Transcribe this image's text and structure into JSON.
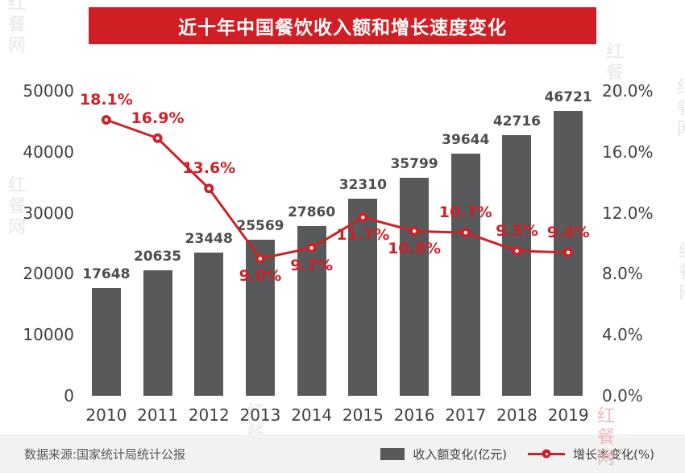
{
  "title": "近十年中国餐饮收入额和增长速度变化",
  "watermark": "红餐网",
  "footer": {
    "source": "数据来源:国家统计局统计公报",
    "legend": [
      {
        "label": "收入额变化(亿元)",
        "type": "bar",
        "color": "#58595b"
      },
      {
        "label": "增长率变化(%)",
        "type": "line",
        "color": "#cc2229"
      }
    ]
  },
  "colors": {
    "banner": "#cf1f25",
    "bar": "#58595b",
    "line": "#cc2229",
    "axis_text": "#414042",
    "footer_bg": "#f2f2f2"
  },
  "chart_data": {
    "type": "bar+line",
    "title": "近十年中国餐饮收入额和增长速度变化",
    "categories": [
      "2010",
      "2011",
      "2012",
      "2013",
      "2014",
      "2015",
      "2016",
      "2017",
      "2018",
      "2019"
    ],
    "series": [
      {
        "name": "收入额变化(亿元)",
        "type": "bar",
        "axis": "left",
        "color": "#58595b",
        "values": [
          17648,
          20635,
          23448,
          25569,
          27860,
          32310,
          35799,
          39644,
          42716,
          46721
        ]
      },
      {
        "name": "增长率变化(%)",
        "type": "line",
        "axis": "right",
        "color": "#cc2229",
        "values": [
          18.1,
          16.9,
          13.6,
          9.0,
          9.7,
          11.7,
          10.8,
          10.7,
          9.5,
          9.4
        ],
        "label_suffix": "%",
        "label_positions": [
          "above",
          "above",
          "above",
          "below",
          "below",
          "below",
          "below",
          "above",
          "above",
          "above"
        ]
      }
    ],
    "left_axis": {
      "min": 0,
      "max": 50000,
      "step": 10000,
      "ticks": [
        "0",
        "10000",
        "20000",
        "30000",
        "40000",
        "50000"
      ]
    },
    "right_axis": {
      "min": 0,
      "max": 20,
      "step": 4,
      "ticks": [
        "0.0%",
        "4.0%",
        "8.0%",
        "12.0%",
        "16.0%",
        "20.0%"
      ]
    },
    "grid": false,
    "legend_position": "bottom"
  }
}
